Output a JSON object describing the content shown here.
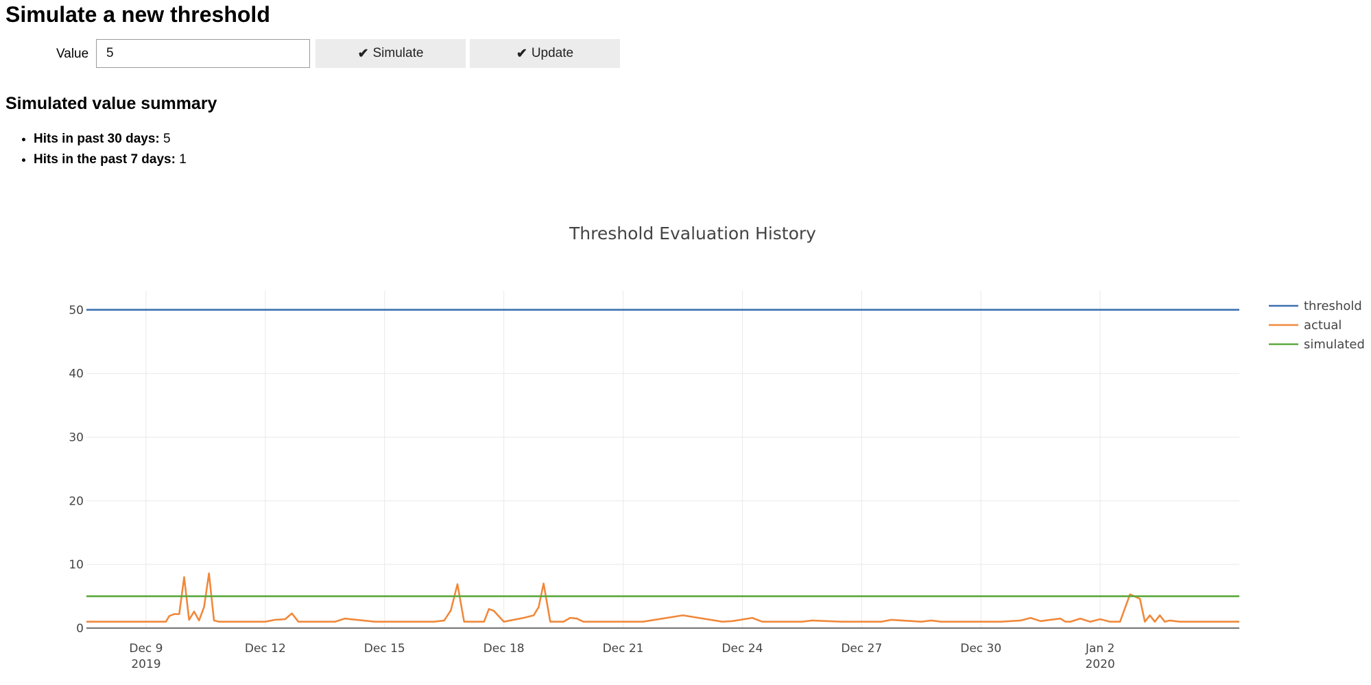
{
  "page": {
    "title": "Simulate a new threshold"
  },
  "form": {
    "value_label": "Value",
    "value": "5",
    "simulate_label": "Simulate",
    "update_label": "Update"
  },
  "summary": {
    "heading": "Simulated value summary",
    "items": [
      {
        "label": "Hits in past 30 days:",
        "value": "5"
      },
      {
        "label": "Hits in the past 7 days:",
        "value": "1"
      }
    ]
  },
  "chart_data": {
    "type": "line",
    "title": "Threshold Evaluation History",
    "x_start": "2019-12-07T12:00",
    "x_end": "2020-01-05T12:00",
    "ylim": [
      0,
      53
    ],
    "yticks": [
      0,
      10,
      20,
      30,
      40,
      50
    ],
    "xticks": [
      {
        "date": "2019-12-09",
        "label": "Dec 9",
        "sublabel": "2019"
      },
      {
        "date": "2019-12-12",
        "label": "Dec 12",
        "sublabel": ""
      },
      {
        "date": "2019-12-15",
        "label": "Dec 15",
        "sublabel": ""
      },
      {
        "date": "2019-12-18",
        "label": "Dec 18",
        "sublabel": ""
      },
      {
        "date": "2019-12-21",
        "label": "Dec 21",
        "sublabel": ""
      },
      {
        "date": "2019-12-24",
        "label": "Dec 24",
        "sublabel": ""
      },
      {
        "date": "2019-12-27",
        "label": "Dec 27",
        "sublabel": ""
      },
      {
        "date": "2019-12-30",
        "label": "Dec 30",
        "sublabel": ""
      },
      {
        "date": "2020-01-02",
        "label": "Jan 2",
        "sublabel": "2020"
      }
    ],
    "grid": true,
    "legend_position": "top-right",
    "series": [
      {
        "name": "threshold",
        "color": "#3a6fb0",
        "points": [
          [
            "2019-12-07T12:00",
            50
          ],
          [
            "2020-01-05T12:00",
            50
          ]
        ]
      },
      {
        "name": "actual",
        "color": "#f0883a",
        "points": [
          [
            "2019-12-07T12:00",
            1
          ],
          [
            "2019-12-08T12:00",
            1
          ],
          [
            "2019-12-09T12:00",
            1
          ],
          [
            "2019-12-09T14:00",
            1.9
          ],
          [
            "2019-12-09T17:00",
            2.2
          ],
          [
            "2019-12-09T20:00",
            2.2
          ],
          [
            "2019-12-09T23:00",
            8.0
          ],
          [
            "2019-12-10T02:00",
            1.3
          ],
          [
            "2019-12-10T05:00",
            2.6
          ],
          [
            "2019-12-10T08:00",
            1.2
          ],
          [
            "2019-12-10T11:00",
            3.3
          ],
          [
            "2019-12-10T14:00",
            8.6
          ],
          [
            "2019-12-10T17:00",
            1.2
          ],
          [
            "2019-12-10T20:00",
            1.0
          ],
          [
            "2019-12-11T12:00",
            1.0
          ],
          [
            "2019-12-12T00:00",
            1.0
          ],
          [
            "2019-12-12T06:00",
            1.3
          ],
          [
            "2019-12-12T12:00",
            1.4
          ],
          [
            "2019-12-12T16:00",
            2.3
          ],
          [
            "2019-12-12T20:00",
            1.0
          ],
          [
            "2019-12-13T18:00",
            1.0
          ],
          [
            "2019-12-14T00:00",
            1.5
          ],
          [
            "2019-12-14T18:00",
            1.0
          ],
          [
            "2019-12-16T06:00",
            1.0
          ],
          [
            "2019-12-16T12:00",
            1.2
          ],
          [
            "2019-12-16T16:00",
            2.8
          ],
          [
            "2019-12-16T20:00",
            6.9
          ],
          [
            "2019-12-17T00:00",
            1.0
          ],
          [
            "2019-12-17T12:00",
            1.0
          ],
          [
            "2019-12-17T15:00",
            3.0
          ],
          [
            "2019-12-17T18:00",
            2.7
          ],
          [
            "2019-12-18T00:00",
            1.0
          ],
          [
            "2019-12-18T12:00",
            1.6
          ],
          [
            "2019-12-18T18:00",
            2.0
          ],
          [
            "2019-12-18T21:00",
            3.3
          ],
          [
            "2019-12-19T00:00",
            7.0
          ],
          [
            "2019-12-19T04:00",
            1.0
          ],
          [
            "2019-12-19T12:00",
            1.0
          ],
          [
            "2019-12-19T16:00",
            1.6
          ],
          [
            "2019-12-19T20:00",
            1.5
          ],
          [
            "2019-12-20T00:00",
            1.0
          ],
          [
            "2019-12-21T12:00",
            1.0
          ],
          [
            "2019-12-22T12:00",
            2.0
          ],
          [
            "2019-12-23T12:00",
            1.0
          ],
          [
            "2019-12-23T18:00",
            1.1
          ],
          [
            "2019-12-24T06:00",
            1.6
          ],
          [
            "2019-12-24T12:00",
            1.0
          ],
          [
            "2019-12-25T12:00",
            1.0
          ],
          [
            "2019-12-25T18:00",
            1.2
          ],
          [
            "2019-12-26T12:00",
            1.0
          ],
          [
            "2019-12-27T12:00",
            1.0
          ],
          [
            "2019-12-27T18:00",
            1.3
          ],
          [
            "2019-12-28T12:00",
            1.0
          ],
          [
            "2019-12-28T18:00",
            1.2
          ],
          [
            "2019-12-29T00:00",
            1.0
          ],
          [
            "2019-12-30T12:00",
            1.0
          ],
          [
            "2019-12-31T00:00",
            1.2
          ],
          [
            "2019-12-31T06:00",
            1.6
          ],
          [
            "2019-12-31T12:00",
            1.1
          ],
          [
            "2020-01-01T00:00",
            1.5
          ],
          [
            "2020-01-01T03:00",
            1.0
          ],
          [
            "2020-01-01T06:00",
            1.0
          ],
          [
            "2020-01-01T12:00",
            1.5
          ],
          [
            "2020-01-01T18:00",
            1.0
          ],
          [
            "2020-01-02T00:00",
            1.4
          ],
          [
            "2020-01-02T06:00",
            1.0
          ],
          [
            "2020-01-02T12:00",
            1.0
          ],
          [
            "2020-01-02T18:00",
            5.3
          ],
          [
            "2020-01-03T00:00",
            4.6
          ],
          [
            "2020-01-03T03:00",
            1.0
          ],
          [
            "2020-01-03T06:00",
            2.0
          ],
          [
            "2020-01-03T09:00",
            1.0
          ],
          [
            "2020-01-03T12:00",
            2.0
          ],
          [
            "2020-01-03T15:00",
            1.0
          ],
          [
            "2020-01-03T18:00",
            1.2
          ],
          [
            "2020-01-04T00:00",
            1.0
          ],
          [
            "2020-01-05T12:00",
            1.0
          ]
        ]
      },
      {
        "name": "simulated",
        "color": "#5aa83c",
        "points": [
          [
            "2019-12-07T12:00",
            5
          ],
          [
            "2020-01-05T12:00",
            5
          ]
        ]
      }
    ]
  }
}
